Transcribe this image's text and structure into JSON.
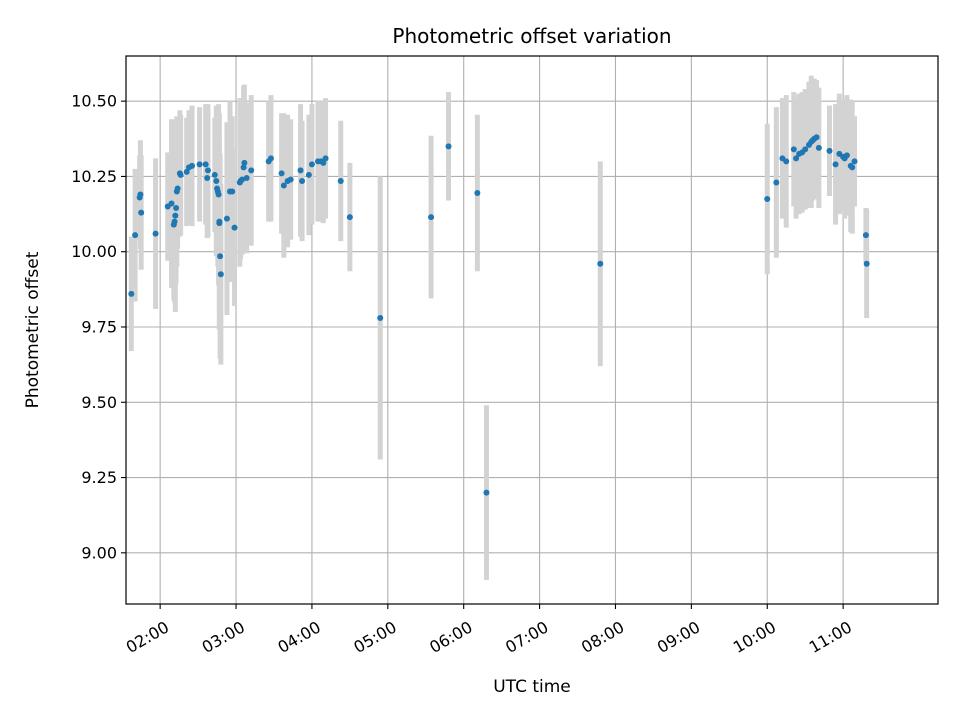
{
  "chart_data": {
    "type": "scatter",
    "title": "Photometric offset variation",
    "xlabel": "UTC time",
    "ylabel": "Photometric offset",
    "x_unit": "UTC hours",
    "xlim": [
      1.55,
      12.25
    ],
    "ylim": [
      8.83,
      10.65
    ],
    "x_ticks": [
      {
        "value": 2,
        "label": "02:00"
      },
      {
        "value": 3,
        "label": "03:00"
      },
      {
        "value": 4,
        "label": "04:00"
      },
      {
        "value": 5,
        "label": "05:00"
      },
      {
        "value": 6,
        "label": "06:00"
      },
      {
        "value": 7,
        "label": "07:00"
      },
      {
        "value": 8,
        "label": "08:00"
      },
      {
        "value": 9,
        "label": "09:00"
      },
      {
        "value": 10,
        "label": "10:00"
      },
      {
        "value": 11,
        "label": "11:00"
      }
    ],
    "y_ticks": [
      {
        "value": 9.0,
        "label": "9.00"
      },
      {
        "value": 9.25,
        "label": "9.25"
      },
      {
        "value": 9.5,
        "label": "9.50"
      },
      {
        "value": 9.75,
        "label": "9.75"
      },
      {
        "value": 10.0,
        "label": "10.00"
      },
      {
        "value": 10.25,
        "label": "10.25"
      },
      {
        "value": 10.5,
        "label": "10.50"
      }
    ],
    "grid": true,
    "point_color": "#1f77b4",
    "errorbar_color": "#d3d3d3",
    "points": [
      [
        1.62,
        9.86,
        0.19
      ],
      [
        1.67,
        10.055,
        0.22
      ],
      [
        1.73,
        10.18,
        0.14
      ],
      [
        1.74,
        10.19,
        0.18
      ],
      [
        1.75,
        10.13,
        0.19
      ],
      [
        1.94,
        10.06,
        0.25
      ],
      [
        2.1,
        10.15,
        0.18
      ],
      [
        2.15,
        10.16,
        0.28
      ],
      [
        2.18,
        10.09,
        0.25
      ],
      [
        2.19,
        10.1,
        0.27
      ],
      [
        2.2,
        10.12,
        0.32
      ],
      [
        2.21,
        10.145,
        0.25
      ],
      [
        2.22,
        10.2,
        0.25
      ],
      [
        2.23,
        10.21,
        0.2
      ],
      [
        2.26,
        10.26,
        0.21
      ],
      [
        2.27,
        10.255,
        0.2
      ],
      [
        2.35,
        10.265,
        0.18
      ],
      [
        2.38,
        10.28,
        0.19
      ],
      [
        2.42,
        10.285,
        0.2
      ],
      [
        2.52,
        10.29,
        0.19
      ],
      [
        2.6,
        10.29,
        0.2
      ],
      [
        2.63,
        10.27,
        0.22
      ],
      [
        2.62,
        10.245,
        0.2
      ],
      [
        2.72,
        10.255,
        0.19
      ],
      [
        2.74,
        10.235,
        0.25
      ],
      [
        2.75,
        10.21,
        0.2
      ],
      [
        2.76,
        10.2,
        0.25
      ],
      [
        2.77,
        10.19,
        0.3
      ],
      [
        2.78,
        10.1,
        0.36
      ],
      [
        2.79,
        9.985,
        0.34
      ],
      [
        2.8,
        9.925,
        0.3
      ],
      [
        2.78,
        10.095,
        0.28
      ],
      [
        2.88,
        10.11,
        0.32
      ],
      [
        2.92,
        10.2,
        0.3
      ],
      [
        2.95,
        10.2,
        0.25
      ],
      [
        2.98,
        10.08,
        0.26
      ],
      [
        3.05,
        10.23,
        0.28
      ],
      [
        3.06,
        10.235,
        0.26
      ],
      [
        3.08,
        10.24,
        0.25
      ],
      [
        3.1,
        10.28,
        0.27
      ],
      [
        3.11,
        10.295,
        0.26
      ],
      [
        3.14,
        10.245,
        0.25
      ],
      [
        3.2,
        10.27,
        0.25
      ],
      [
        3.43,
        10.3,
        0.2
      ],
      [
        3.46,
        10.31,
        0.21
      ],
      [
        3.6,
        10.26,
        0.2
      ],
      [
        3.63,
        10.22,
        0.24
      ],
      [
        3.68,
        10.235,
        0.22
      ],
      [
        3.72,
        10.24,
        0.2
      ],
      [
        3.85,
        10.27,
        0.22
      ],
      [
        3.87,
        10.235,
        0.2
      ],
      [
        3.96,
        10.255,
        0.2
      ],
      [
        4.0,
        10.29,
        0.2
      ],
      [
        4.08,
        10.3,
        0.2
      ],
      [
        4.12,
        10.3,
        0.2
      ],
      [
        4.15,
        10.295,
        0.2
      ],
      [
        4.18,
        10.31,
        0.2
      ],
      [
        4.38,
        10.235,
        0.2
      ],
      [
        4.5,
        10.115,
        0.18
      ],
      [
        4.9,
        9.78,
        0.47
      ],
      [
        5.57,
        10.115,
        0.27
      ],
      [
        5.8,
        10.35,
        0.18
      ],
      [
        6.18,
        10.195,
        0.26
      ],
      [
        6.3,
        9.2,
        0.29
      ],
      [
        7.8,
        9.96,
        0.34
      ],
      [
        10.0,
        10.175,
        0.25
      ],
      [
        10.12,
        10.23,
        0.25
      ],
      [
        10.2,
        10.31,
        0.2
      ],
      [
        10.25,
        10.3,
        0.22
      ],
      [
        10.35,
        10.34,
        0.19
      ],
      [
        10.38,
        10.31,
        0.2
      ],
      [
        10.42,
        10.325,
        0.2
      ],
      [
        10.46,
        10.33,
        0.2
      ],
      [
        10.5,
        10.34,
        0.2
      ],
      [
        10.55,
        10.355,
        0.21
      ],
      [
        10.58,
        10.365,
        0.22
      ],
      [
        10.6,
        10.37,
        0.2
      ],
      [
        10.62,
        10.375,
        0.2
      ],
      [
        10.65,
        10.38,
        0.19
      ],
      [
        10.68,
        10.345,
        0.2
      ],
      [
        10.82,
        10.335,
        0.15
      ],
      [
        10.9,
        10.29,
        0.2
      ],
      [
        10.95,
        10.325,
        0.2
      ],
      [
        11.0,
        10.315,
        0.18
      ],
      [
        11.02,
        10.31,
        0.2
      ],
      [
        11.05,
        10.32,
        0.2
      ],
      [
        11.1,
        10.285,
        0.22
      ],
      [
        11.12,
        10.28,
        0.22
      ],
      [
        11.15,
        10.3,
        0.15
      ],
      [
        11.3,
        10.055,
        0.09
      ],
      [
        11.31,
        9.96,
        0.18
      ]
    ]
  }
}
